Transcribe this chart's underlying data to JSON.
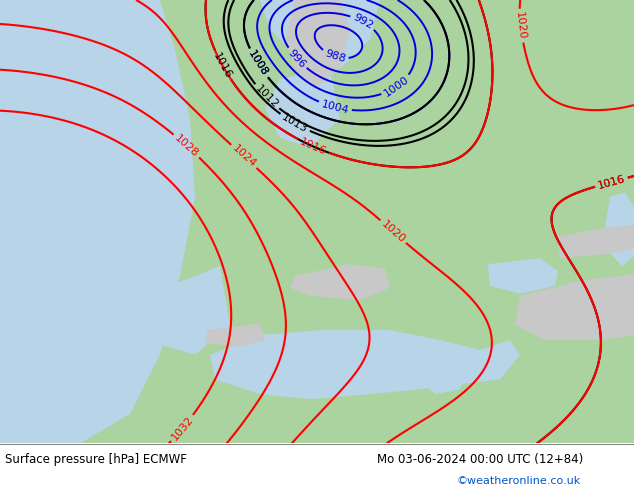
{
  "title_left": "Surface pressure [hPa] ECMWF",
  "title_right": "Mo 03-06-2024 00:00 UTC (12+84)",
  "copyright": "©weatheronline.co.uk",
  "bg_color": "#ffffff",
  "land_color": "#aad3a0",
  "ocean_color": "#b8d4e8",
  "mountain_color": "#c8c8c8",
  "text_color": "#000000",
  "copyright_color": "#0055cc",
  "figsize": [
    6.34,
    4.9
  ],
  "dpi": 100
}
